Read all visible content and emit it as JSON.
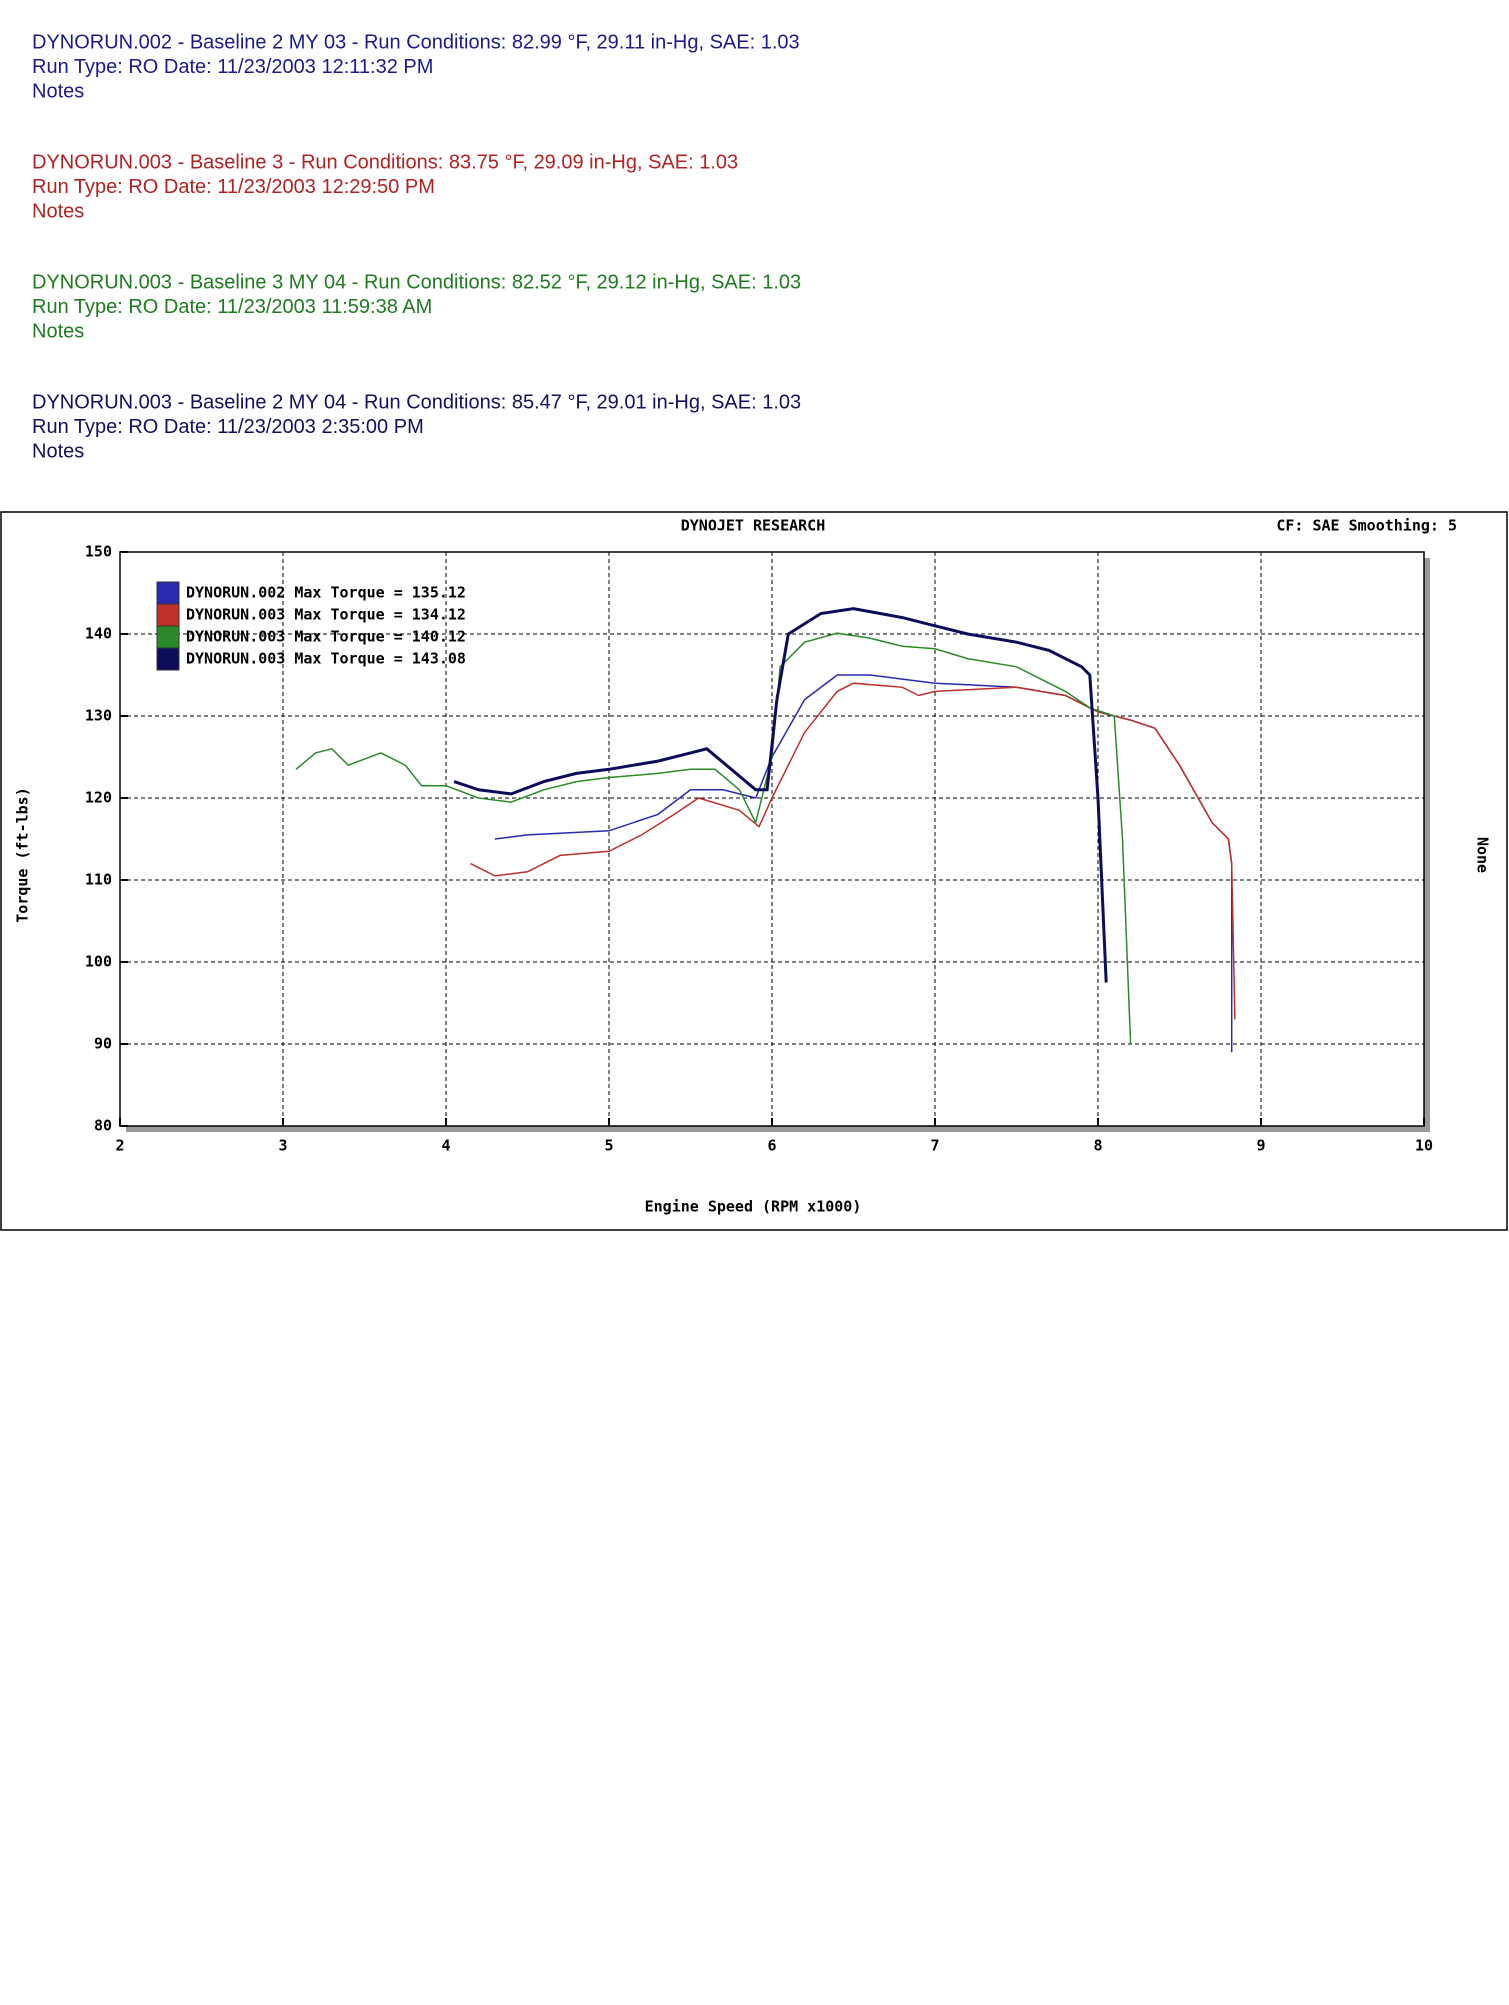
{
  "header": {
    "runs": [
      {
        "color": "#1a1a8c",
        "lines": [
          "DYNORUN.002 - Baseline 2 MY 03  -  Run Conditions: 82.99 °F, 29.11 in-Hg, SAE: 1.03",
          "Run Type: RO  Date: 11/23/2003 12:11:32 PM",
          "Notes"
        ]
      },
      {
        "color": "#b22222",
        "lines": [
          "DYNORUN.003 - Baseline 3  -  Run Conditions: 83.75 °F, 29.09 in-Hg, SAE: 1.03",
          "Run Type: RO  Date: 11/23/2003 12:29:50 PM",
          "Notes"
        ]
      },
      {
        "color": "#1e7b1e",
        "lines": [
          "DYNORUN.003 - Baseline 3 MY 04  -  Run Conditions: 82.52 °F, 29.12 in-Hg, SAE: 1.03",
          "Run Type: RO  Date: 11/23/2003 11:59:38 AM",
          "Notes"
        ]
      },
      {
        "color": "#101060",
        "lines": [
          "DYNORUN.003 - Baseline 2 MY 04  -  Run Conditions: 85.47 °F, 29.01 in-Hg, SAE: 1.03",
          "Run Type: RO  Date: 11/23/2003 2:35:00 PM",
          "Notes"
        ]
      }
    ]
  },
  "chart_data": {
    "type": "line",
    "title": "DYNOJET RESEARCH",
    "subtitle": "CF: SAE  Smoothing: 5",
    "x_label": "Engine Speed (RPM x1000)",
    "y_label": "Torque (ft-lbs)",
    "y2_label": "None",
    "xlim": [
      2,
      10
    ],
    "xticks": [
      2,
      3,
      4,
      5,
      6,
      7,
      8,
      9,
      10
    ],
    "ylim": [
      80,
      150
    ],
    "yticks": [
      80,
      90,
      100,
      110,
      120,
      130,
      140,
      150
    ],
    "grid": true,
    "legend": "upper left",
    "series": [
      {
        "name": "DYNORUN.002 Max Torque = 135.12",
        "color": "#2a2ab0",
        "x": [
          4.3,
          4.5,
          5,
          5.3,
          5.5,
          5.7,
          5.9,
          6.0,
          6.2,
          6.4,
          6.6,
          6.8,
          7.0,
          7.2,
          7.5,
          7.8,
          8.0,
          8.2,
          8.35,
          8.5,
          8.7,
          8.8,
          8.82,
          8.82
        ],
        "values": [
          115,
          115.5,
          116,
          118,
          121,
          121,
          120,
          125,
          132,
          135,
          135,
          134.5,
          134,
          133.8,
          133.5,
          132.5,
          130.5,
          129.5,
          128.5,
          124,
          117,
          115,
          112,
          89
        ]
      },
      {
        "name": "DYNORUN.003 Max Torque = 134.12",
        "color": "#c0302a",
        "x": [
          4.15,
          4.3,
          4.5,
          4.7,
          5,
          5.2,
          5.4,
          5.55,
          5.8,
          5.92,
          6.0,
          6.2,
          6.4,
          6.5,
          6.8,
          6.9,
          7.0,
          7.5,
          7.8,
          8.0,
          8.2,
          8.35,
          8.5,
          8.7,
          8.8,
          8.82,
          8.84
        ],
        "values": [
          112,
          110.5,
          111,
          113,
          113.5,
          115.5,
          118,
          120,
          118.5,
          116.5,
          120,
          128,
          133,
          134,
          133.5,
          132.5,
          133,
          133.5,
          132.5,
          130.5,
          129.5,
          128.5,
          124,
          117,
          115,
          112,
          93
        ]
      },
      {
        "name": "DYNORUN.003 Max Torque = 140.12",
        "color": "#2a8a2a",
        "x": [
          3.08,
          3.2,
          3.3,
          3.4,
          3.6,
          3.75,
          3.85,
          4.0,
          4.2,
          4.4,
          4.6,
          4.8,
          5.0,
          5.3,
          5.5,
          5.65,
          5.8,
          5.9,
          6.0,
          6.05,
          6.2,
          6.4,
          6.6,
          6.8,
          7.0,
          7.2,
          7.5,
          7.8,
          7.95,
          8.1,
          8.15,
          8.2
        ],
        "values": [
          123.5,
          125.5,
          126,
          124,
          125.5,
          124,
          121.5,
          121.5,
          120,
          119.5,
          121,
          122,
          122.5,
          123,
          123.5,
          123.5,
          121,
          117,
          125,
          136,
          139,
          140.1,
          139.5,
          138.5,
          138.2,
          137,
          136,
          133,
          131,
          130,
          115,
          90
        ]
      },
      {
        "name": "DYNORUN.003 Max Torque = 143.08",
        "color": "#0c0c5a",
        "x": [
          4.05,
          4.2,
          4.4,
          4.6,
          4.8,
          5.0,
          5.3,
          5.5,
          5.6,
          5.75,
          5.9,
          5.97,
          6.03,
          6.1,
          6.3,
          6.5,
          6.8,
          7.0,
          7.2,
          7.5,
          7.7,
          7.9,
          7.95,
          8.0,
          8.05
        ],
        "values": [
          122,
          121,
          120.5,
          122,
          123,
          123.5,
          124.5,
          125.5,
          126,
          123.5,
          121,
          121,
          132,
          140,
          142.5,
          143.1,
          142,
          141,
          140,
          139,
          138,
          136,
          135,
          120,
          97.5
        ]
      }
    ]
  }
}
